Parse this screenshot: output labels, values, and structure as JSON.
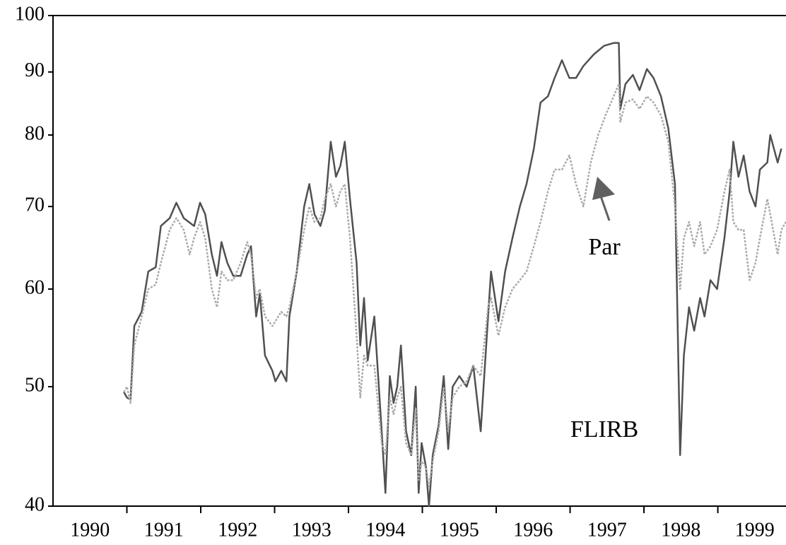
{
  "chart_data": {
    "type": "line",
    "log_y": true,
    "ylim": [
      40,
      100
    ],
    "yticks": [
      40,
      50,
      60,
      70,
      80,
      90,
      100
    ],
    "xlim": [
      1990,
      1999.923
    ],
    "xticks": [
      1991,
      1992,
      1993,
      1994,
      1995,
      1996,
      1997,
      1998,
      1999
    ],
    "categories": [
      "1990",
      "1991",
      "1992",
      "1993",
      "1994",
      "1995",
      "1996",
      "1997",
      "1998",
      "1999"
    ],
    "series": [
      {
        "name": "FLIRB",
        "color": "#505050",
        "style": "solid",
        "x": [
          1990.96,
          1991.0,
          1991.05,
          1991.1,
          1991.2,
          1991.29,
          1991.39,
          1991.46,
          1991.58,
          1991.67,
          1991.77,
          1991.91,
          1991.99,
          1992.06,
          1992.15,
          1992.22,
          1992.28,
          1992.36,
          1992.44,
          1992.54,
          1992.63,
          1992.68,
          1992.75,
          1992.8,
          1992.87,
          1992.97,
          1993.01,
          1993.09,
          1993.16,
          1993.2,
          1993.3,
          1993.4,
          1993.47,
          1993.54,
          1993.62,
          1993.68,
          1993.76,
          1993.83,
          1993.89,
          1993.95,
          1994.02,
          1994.11,
          1994.16,
          1994.21,
          1994.26,
          1994.35,
          1994.45,
          1994.5,
          1994.56,
          1994.61,
          1994.66,
          1994.71,
          1994.78,
          1994.85,
          1994.91,
          1994.95,
          1994.99,
          1995.05,
          1995.09,
          1995.14,
          1995.22,
          1995.29,
          1995.35,
          1995.41,
          1995.5,
          1995.6,
          1995.69,
          1995.79,
          1995.89,
          1995.93,
          1996.03,
          1996.12,
          1996.22,
          1996.32,
          1996.41,
          1996.51,
          1996.6,
          1996.7,
          1996.79,
          1996.89,
          1996.99,
          1997.08,
          1997.18,
          1997.32,
          1997.46,
          1997.59,
          1997.66,
          1997.68,
          1997.75,
          1997.85,
          1997.94,
          1998.04,
          1998.13,
          1998.23,
          1998.33,
          1998.42,
          1998.49,
          1998.54,
          1998.61,
          1998.68,
          1998.76,
          1998.82,
          1998.9,
          1998.99,
          1999.09,
          1999.16,
          1999.21,
          1999.28,
          1999.35,
          1999.43,
          1999.51,
          1999.57,
          1999.67,
          1999.71,
          1999.81,
          1999.86
        ],
        "values": [
          49.5,
          49,
          48.8,
          56,
          57.5,
          62,
          62.5,
          67.5,
          68.5,
          70.5,
          68.5,
          67.5,
          70.5,
          69,
          64,
          61.5,
          65.5,
          63,
          61.5,
          61.5,
          64,
          65,
          57,
          59.5,
          53,
          51.5,
          50.5,
          51.5,
          50.5,
          57,
          62,
          70,
          73,
          69,
          67.5,
          69.5,
          79,
          74,
          75.5,
          79,
          71,
          63,
          54,
          59,
          52.5,
          57,
          46,
          41,
          51,
          48.5,
          50,
          54,
          46,
          44,
          50,
          41,
          45,
          43,
          40,
          44,
          46.5,
          51,
          44.5,
          50,
          51,
          50,
          52,
          46,
          57,
          62,
          56.5,
          62,
          66,
          70,
          73,
          78,
          85,
          86,
          89,
          92,
          89,
          89,
          91,
          93,
          94.5,
          95,
          95,
          84,
          88,
          89.5,
          87,
          90.5,
          89,
          86,
          81,
          73,
          44,
          53,
          58,
          55.5,
          59,
          57,
          61,
          60,
          66,
          72,
          79,
          74,
          77,
          72,
          70,
          75,
          76,
          80,
          76,
          78
        ]
      },
      {
        "name": "Par",
        "color": "#aaaaaa",
        "style": "dotted",
        "x": [
          1990.96,
          1991.0,
          1991.05,
          1991.1,
          1991.2,
          1991.29,
          1991.39,
          1991.46,
          1991.58,
          1991.67,
          1991.77,
          1991.85,
          1991.91,
          1991.99,
          1992.06,
          1992.15,
          1992.22,
          1992.28,
          1992.36,
          1992.44,
          1992.54,
          1992.63,
          1992.68,
          1992.75,
          1992.8,
          1992.87,
          1992.97,
          1993.01,
          1993.09,
          1993.16,
          1993.2,
          1993.3,
          1993.4,
          1993.47,
          1993.54,
          1993.62,
          1993.68,
          1993.76,
          1993.83,
          1993.89,
          1993.95,
          1994.02,
          1994.11,
          1994.16,
          1994.21,
          1994.26,
          1994.35,
          1994.45,
          1994.5,
          1994.56,
          1994.61,
          1994.66,
          1994.71,
          1994.78,
          1994.85,
          1994.91,
          1994.95,
          1994.99,
          1995.05,
          1995.09,
          1995.14,
          1995.22,
          1995.29,
          1995.35,
          1995.41,
          1995.5,
          1995.6,
          1995.69,
          1995.79,
          1995.89,
          1995.93,
          1996.03,
          1996.12,
          1996.22,
          1996.32,
          1996.41,
          1996.51,
          1996.6,
          1996.7,
          1996.79,
          1996.89,
          1996.99,
          1997.08,
          1997.18,
          1997.28,
          1997.38,
          1997.48,
          1997.59,
          1997.66,
          1997.68,
          1997.75,
          1997.85,
          1997.94,
          1998.04,
          1998.13,
          1998.23,
          1998.33,
          1998.42,
          1998.49,
          1998.54,
          1998.61,
          1998.68,
          1998.76,
          1998.82,
          1998.9,
          1998.99,
          1999.09,
          1999.16,
          1999.21,
          1999.28,
          1999.35,
          1999.43,
          1999.51,
          1999.57,
          1999.67,
          1999.71,
          1999.81,
          1999.86,
          1999.92
        ],
        "values": [
          49.5,
          50,
          48.5,
          54,
          57,
          60,
          60.5,
          63,
          67,
          68.5,
          67,
          64,
          66,
          68,
          66,
          60,
          58,
          62,
          61,
          61,
          63,
          65.5,
          64,
          59,
          60,
          57,
          56,
          56.5,
          57.5,
          57,
          58,
          62,
          67,
          70,
          68,
          68.5,
          71,
          73,
          70,
          72,
          73,
          66,
          55,
          49,
          53,
          52,
          52,
          45,
          44,
          49,
          47.5,
          49,
          50,
          45,
          44,
          48,
          42,
          43.5,
          43,
          41.5,
          43.5,
          46,
          50,
          46,
          49,
          50,
          50.5,
          52,
          51,
          58,
          59,
          55,
          58,
          60,
          61,
          62,
          65,
          68,
          72,
          75,
          75,
          77,
          73,
          70,
          76,
          80,
          83,
          86,
          88,
          82,
          85,
          85.5,
          84,
          86,
          85,
          83,
          79,
          70,
          60,
          66,
          68,
          65,
          68,
          64,
          65,
          67,
          72,
          75,
          68,
          67,
          67,
          61,
          63,
          66,
          71,
          69,
          64,
          67,
          68
        ]
      }
    ]
  }
}
